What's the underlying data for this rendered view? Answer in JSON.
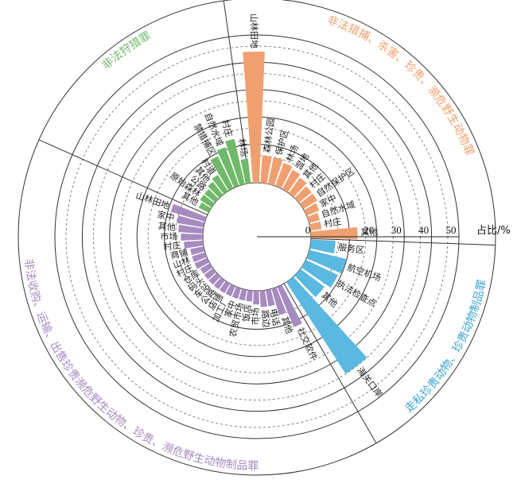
{
  "chart_data": {
    "type": "polar-bar",
    "unit_label": "占比/%",
    "radial_ticks": [
      "0",
      "20",
      "30",
      "40",
      "50"
    ],
    "radial_tick_values": [
      0,
      20,
      30,
      40,
      50
    ],
    "rmax": 50,
    "groups": [
      {
        "title": "非法猎捕、杀害、珍贵、濒危野生动物罪",
        "color": "#f0a070",
        "angle_range": [
          -5,
          92
        ],
        "bars": [
          {
            "label": "山林田地",
            "value": 48
          },
          {
            "label": "森林公园",
            "value": 10
          },
          {
            "label": "保护区",
            "value": 10
          },
          {
            "label": "林场",
            "value": 9
          },
          {
            "label": "湿地",
            "value": 8
          },
          {
            "label": "其他",
            "value": 7
          },
          {
            "label": "村庄",
            "value": 6
          },
          {
            "label": "自然保护区",
            "value": 6
          },
          {
            "label": "家中",
            "value": 5
          },
          {
            "label": "自然水域",
            "value": 4
          },
          {
            "label": "村庄",
            "value": 4
          },
          {
            "label": "其他",
            "value": 17
          }
        ]
      },
      {
        "title": "走私珍贵动物、珍贵动物制品罪",
        "color": "#5bb8e0",
        "angle_range": [
          92,
          148
        ],
        "bars": [
          {
            "label": "服务区",
            "value": 9
          },
          {
            "label": "航空机场",
            "value": 14
          },
          {
            "label": "执法检查点",
            "value": 13
          },
          {
            "label": "其他",
            "value": 11
          },
          {
            "label": "海关口岸",
            "value": 40
          }
        ]
      },
      {
        "title": "非法收购、运输、出售珍贵濒危野生动物、珍贵、濒危野生动物制品罪",
        "color": "#a58bc0",
        "angle_range": [
          152,
          292
        ],
        "bars": [
          {
            "label": "社交软件",
            "value": 16
          },
          {
            "label": "其他",
            "value": 10
          },
          {
            "label": "电话",
            "value": 6
          },
          {
            "label": "路边",
            "value": 6
          },
          {
            "label": "市场",
            "value": 5
          },
          {
            "label": "饭店",
            "value": 4
          },
          {
            "label": "农贸市场",
            "value": 4
          },
          {
            "label": "家中",
            "value": 4
          },
          {
            "label": "加工厂",
            "value": 4
          },
          {
            "label": "店铺",
            "value": 4
          },
          {
            "label": "公路",
            "value": 4
          },
          {
            "label": "车站",
            "value": 4
          },
          {
            "label": "码头",
            "value": 4
          },
          {
            "label": "仓库",
            "value": 4
          },
          {
            "label": "村庄",
            "value": 5
          },
          {
            "label": "山林",
            "value": 5
          },
          {
            "label": "商铺",
            "value": 5
          },
          {
            "label": "村庄",
            "value": 7
          },
          {
            "label": "市场",
            "value": 8
          },
          {
            "label": "其他",
            "value": 9
          },
          {
            "label": "家中",
            "value": 10
          },
          {
            "label": "山林田地",
            "value": 13
          }
        ]
      },
      {
        "title": "非法狩猎罪",
        "color": "#70b96a",
        "angle_range": [
          296,
          354
        ],
        "bars": [
          {
            "label": "其他",
            "value": 4
          },
          {
            "label": "原始森林",
            "value": 5
          },
          {
            "label": "公路",
            "value": 5
          },
          {
            "label": "其他",
            "value": 6
          },
          {
            "label": "村道",
            "value": 7
          },
          {
            "label": "禁猎捕区",
            "value": 13
          },
          {
            "label": "自然水域",
            "value": 15
          },
          {
            "label": "村庄",
            "value": 17
          },
          {
            "label": "林场",
            "value": 9
          }
        ]
      }
    ]
  }
}
